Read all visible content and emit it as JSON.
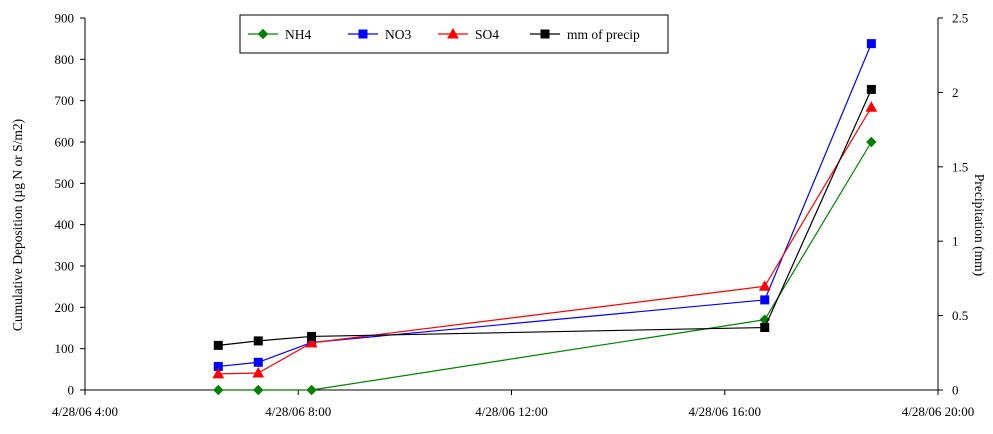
{
  "chart_data": {
    "type": "line",
    "x_format": "M/D/YY H:MM",
    "xlim": [
      "4/28/06 4:00",
      "4/28/06 20:00"
    ],
    "x_ticks": [
      "4/28/06 4:00",
      "4/28/06 8:00",
      "4/28/06 12:00",
      "4/28/06 16:00",
      "4/28/06 20:00"
    ],
    "ylabel": "Cumulative Deposition (µg N or S/m2)",
    "ylim": [
      0,
      900
    ],
    "y_ticks": [
      "0",
      "100",
      "200",
      "300",
      "400",
      "500",
      "600",
      "700",
      "800",
      "900"
    ],
    "y2label": "Precipitation (mm)",
    "y2lim": [
      0,
      2.5
    ],
    "y2_ticks": [
      "0",
      "0.5",
      "1",
      "1.5",
      "2",
      "2.5"
    ],
    "grid": false,
    "legend_position": "top-center",
    "series": [
      {
        "name": "NH4",
        "axis": "left",
        "color": "#008000",
        "marker": "diamond",
        "points": [
          {
            "x": "4/28/06 6:30",
            "y": 0
          },
          {
            "x": "4/28/06 7:15",
            "y": 0
          },
          {
            "x": "4/28/06 8:15",
            "y": 0
          },
          {
            "x": "4/28/06 16:45",
            "y": 170
          },
          {
            "x": "4/28/06 18:45",
            "y": 600
          }
        ]
      },
      {
        "name": "NO3",
        "axis": "left",
        "color": "#0000ff",
        "marker": "square",
        "points": [
          {
            "x": "4/28/06 6:30",
            "y": 57
          },
          {
            "x": "4/28/06 7:15",
            "y": 67
          },
          {
            "x": "4/28/06 8:15",
            "y": 115
          },
          {
            "x": "4/28/06 16:45",
            "y": 218
          },
          {
            "x": "4/28/06 18:45",
            "y": 838
          }
        ]
      },
      {
        "name": "SO4",
        "axis": "left",
        "color": "#ff0000",
        "marker": "triangle",
        "points": [
          {
            "x": "4/28/06 6:30",
            "y": 39
          },
          {
            "x": "4/28/06 7:15",
            "y": 41
          },
          {
            "x": "4/28/06 8:15",
            "y": 114
          },
          {
            "x": "4/28/06 16:45",
            "y": 251
          },
          {
            "x": "4/28/06 18:45",
            "y": 684
          }
        ]
      },
      {
        "name": "mm of precip",
        "axis": "right",
        "color": "#000000",
        "marker": "square",
        "points": [
          {
            "x": "4/28/06 6:30",
            "y": 0.3
          },
          {
            "x": "4/28/06 7:15",
            "y": 0.33
          },
          {
            "x": "4/28/06 8:15",
            "y": 0.36
          },
          {
            "x": "4/28/06 16:45",
            "y": 0.42
          },
          {
            "x": "4/28/06 18:45",
            "y": 2.02
          }
        ]
      }
    ]
  }
}
